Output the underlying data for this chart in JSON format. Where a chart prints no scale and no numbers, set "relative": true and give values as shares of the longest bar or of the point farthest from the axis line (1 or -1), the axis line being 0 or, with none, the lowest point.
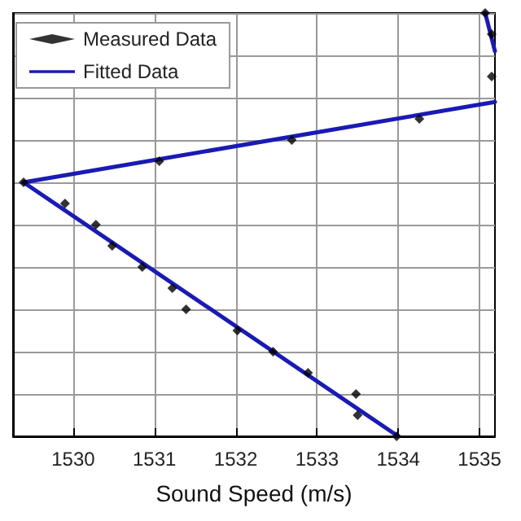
{
  "chart_data": {
    "type": "scatter",
    "xlabel": "Sound Speed (m/s)",
    "relative": true,
    "xlim": [
      1529.26,
      1535.19
    ],
    "xticks": [
      1530,
      1531,
      1532,
      1533,
      1534,
      1535
    ],
    "grid": true,
    "legend": "top left",
    "series": [
      {
        "name": "Measured Data",
        "marker": "diamond",
        "color": "#000000",
        "x": [
          1529.39,
          1529.9,
          1530.28,
          1530.48,
          1530.85,
          1531.22,
          1531.39,
          1532.02,
          1532.46,
          1532.89,
          1533.48,
          1533.5,
          1533.98,
          1531.06,
          1532.69,
          1534.26,
          1535.15,
          1535.15,
          1535.07
        ],
        "values": [
          0.6,
          0.55,
          0.5,
          0.45,
          0.4,
          0.35,
          0.3,
          0.25,
          0.2,
          0.15,
          0.1,
          0.05,
          0,
          0.65,
          0.7,
          0.75,
          0.85,
          0.95,
          1.0
        ]
      },
      {
        "name": "Fitted Data",
        "type": "line",
        "marker": "none",
        "color": "#1a1ab4",
        "x": [
          1534,
          1529.39,
          1535.19
        ],
        "values": [
          0,
          0.6,
          0.79
        ]
      },
      {
        "type": "line",
        "marker": "none",
        "color": "#1a1ab4",
        "x": [
          1535.07,
          1535.19
        ],
        "values": [
          1.0,
          0.91
        ]
      }
    ]
  }
}
